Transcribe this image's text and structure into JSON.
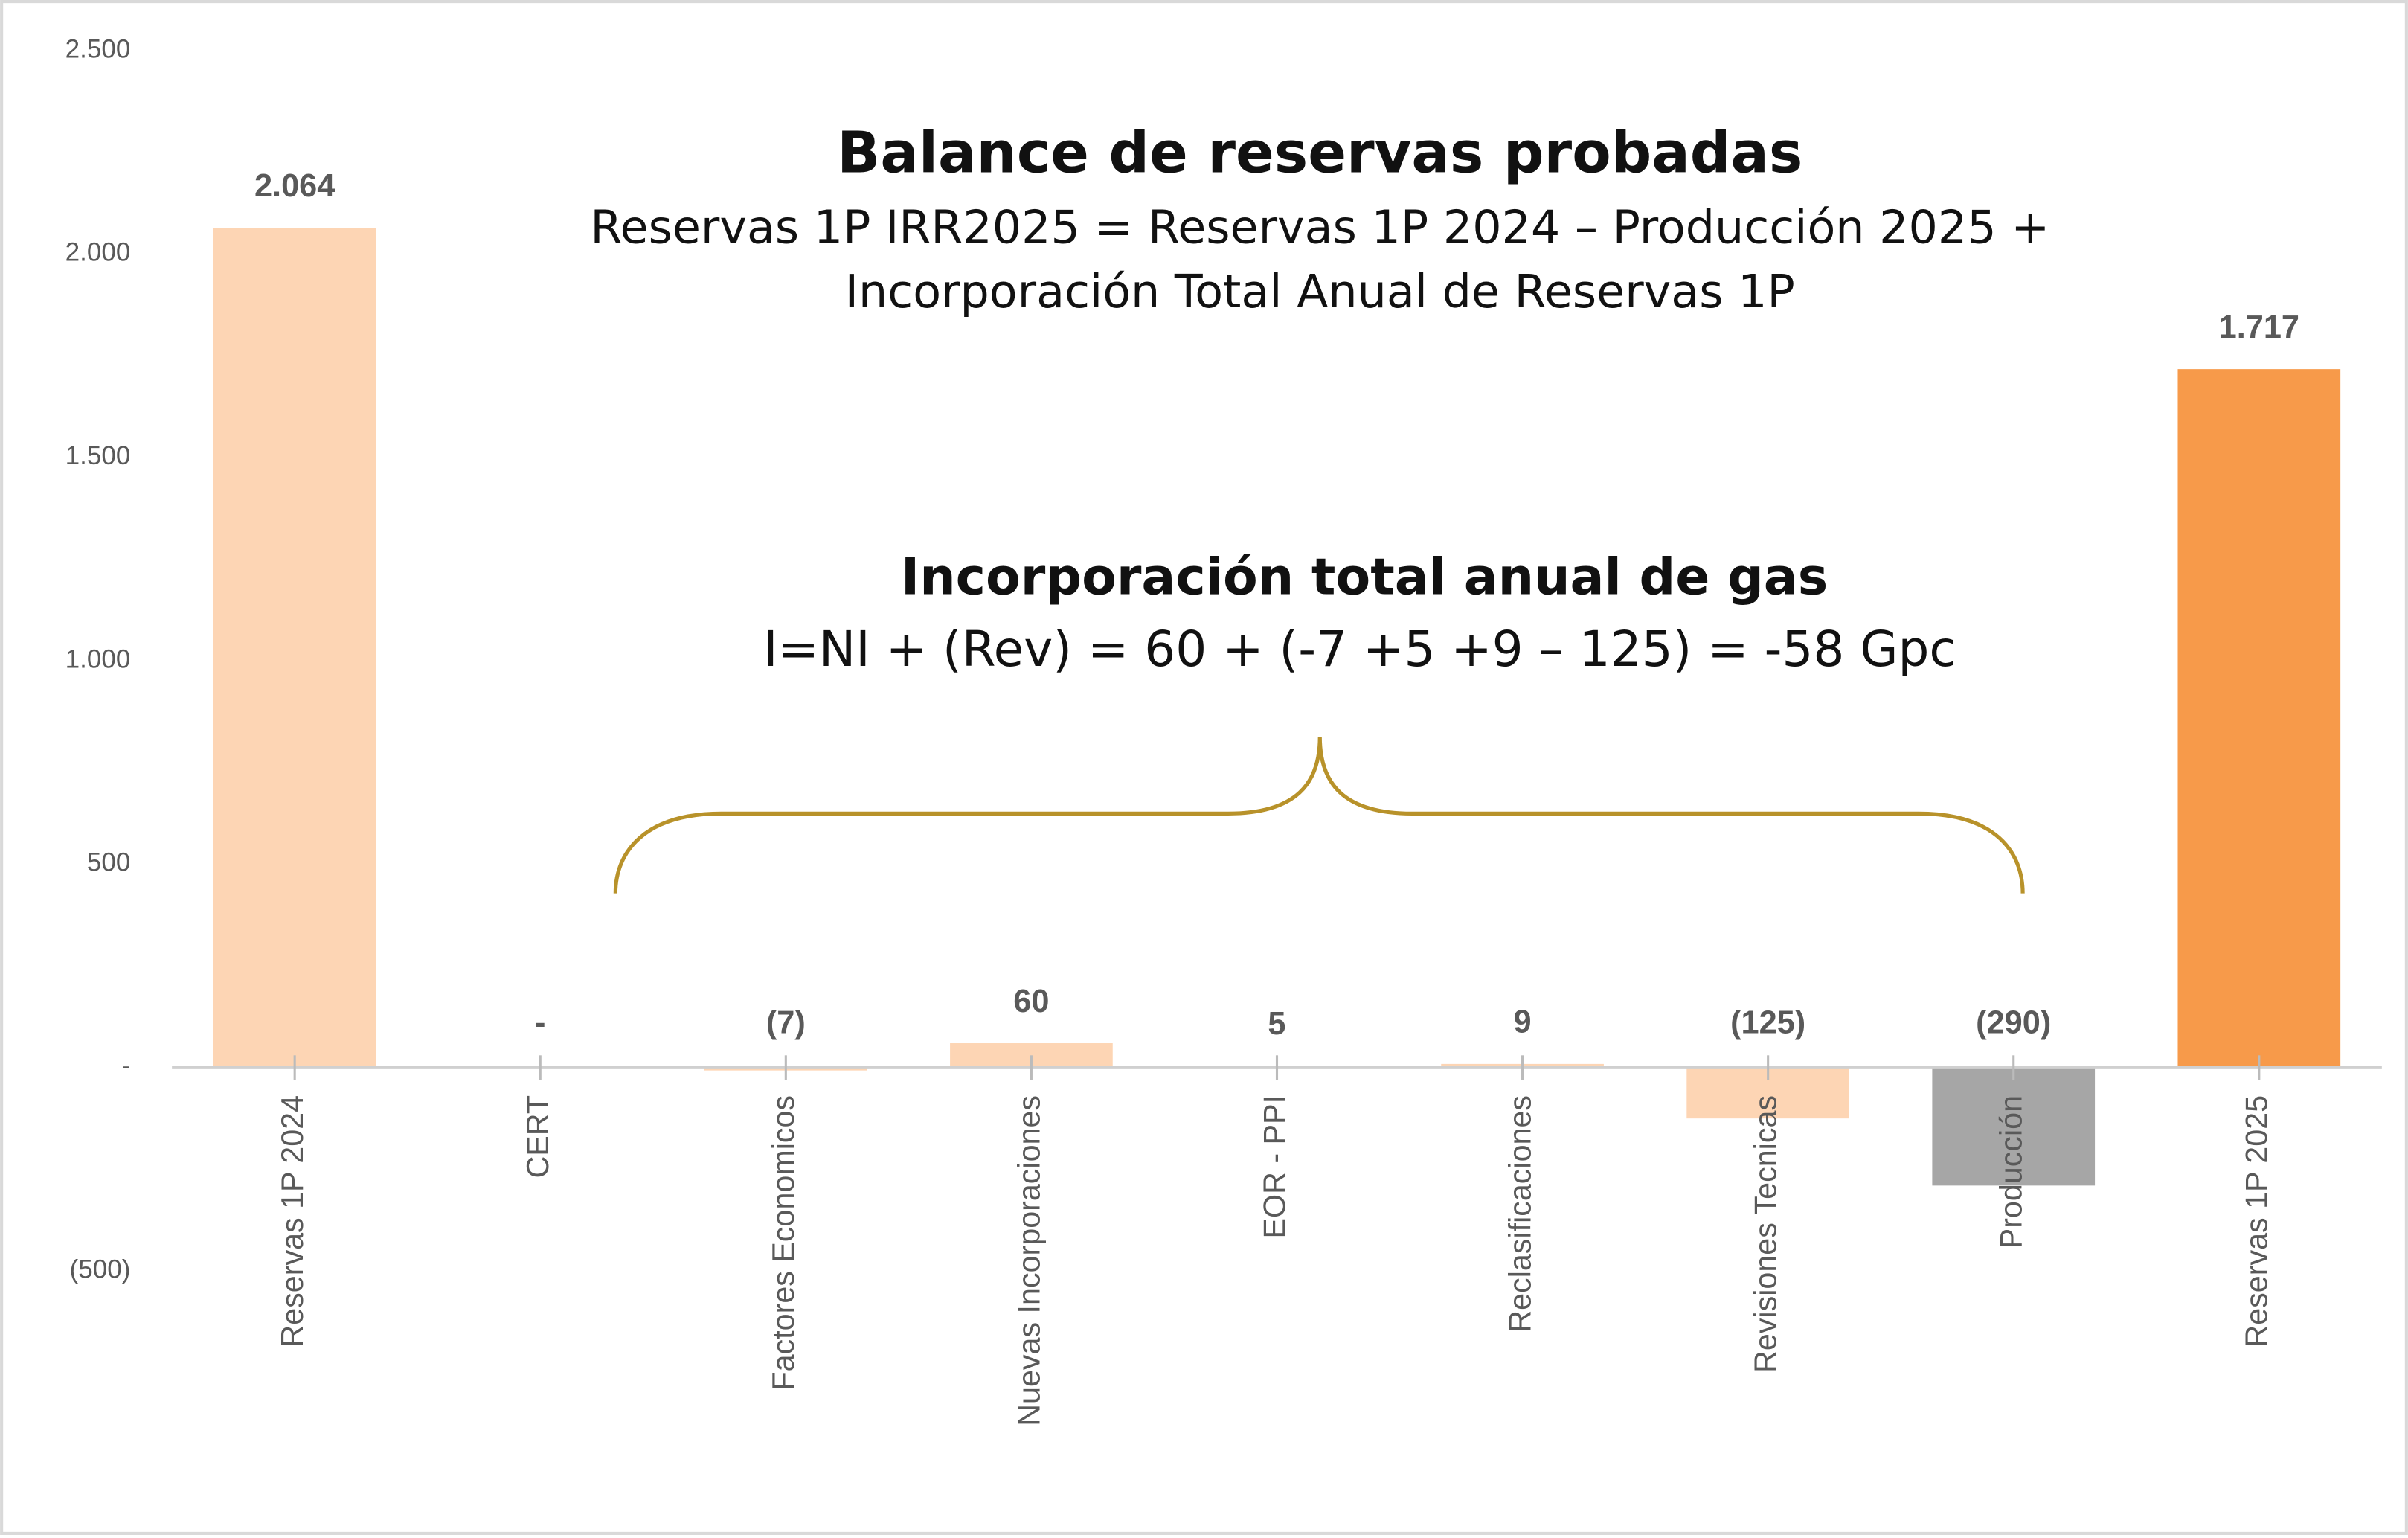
{
  "chart_data": {
    "type": "bar",
    "title": "Balance de reservas probadas",
    "subtitle": [
      "Reservas 1P IRR2025 = Reservas 1P 2024 – Producción 2025 +",
      "Incorporación Total Anual de Reservas 1P"
    ],
    "annotations": [
      "Incorporación total anual de gas",
      "I=NI + (Rev) = 60 + (-7 +5 +9 – 125) = -58 Gpc"
    ],
    "categories": [
      "Reservas 1P 2024",
      "CERT",
      "Factores Economicos",
      "Nuevas Incorporaciones",
      "EOR - PPI",
      "Reclasificaciones",
      "Revisiones Tecnicas",
      "Producción",
      "Reservas 1P 2025"
    ],
    "values": [
      2064,
      0,
      -7,
      60,
      5,
      9,
      -125,
      -290,
      1717
    ],
    "value_labels": [
      "2.064",
      "-",
      "(7)",
      "60",
      "5",
      "9",
      "(125)",
      "(290)",
      "1.717"
    ],
    "colors": [
      "#fdd5b4",
      "#fdd5b4",
      "#fdd5b4",
      "#fdd5b4",
      "#fdd5b4",
      "#fdd5b4",
      "#fdd5b4",
      "#a6a6a6",
      "#f79a4a"
    ],
    "ylim": [
      -500,
      2500
    ],
    "yticks": [
      {
        "value": 2500,
        "label": "2.500"
      },
      {
        "value": 2000,
        "label": "2.000"
      },
      {
        "value": 1500,
        "label": "1.500"
      },
      {
        "value": 1000,
        "label": "1.000"
      },
      500,
      {
        "value": 0,
        "label": "-"
      },
      {
        "value": -500,
        "label": "(500)"
      }
    ],
    "grid": false
  }
}
